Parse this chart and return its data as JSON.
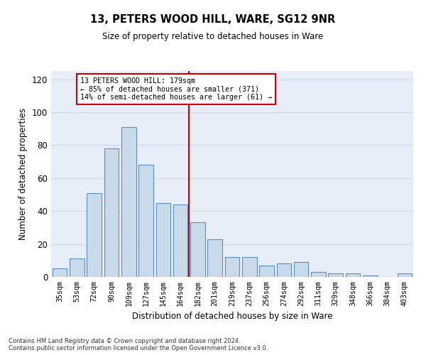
{
  "title": "13, PETERS WOOD HILL, WARE, SG12 9NR",
  "subtitle": "Size of property relative to detached houses in Ware",
  "xlabel": "Distribution of detached houses by size in Ware",
  "ylabel": "Number of detached properties",
  "bar_labels": [
    "35sqm",
    "53sqm",
    "72sqm",
    "90sqm",
    "109sqm",
    "127sqm",
    "145sqm",
    "164sqm",
    "182sqm",
    "201sqm",
    "219sqm",
    "237sqm",
    "256sqm",
    "274sqm",
    "292sqm",
    "311sqm",
    "329sqm",
    "348sqm",
    "366sqm",
    "384sqm",
    "403sqm"
  ],
  "bar_values": [
    5,
    11,
    51,
    78,
    91,
    68,
    45,
    44,
    33,
    23,
    12,
    12,
    7,
    8,
    9,
    3,
    2,
    2,
    1,
    0,
    2
  ],
  "bar_color": "#c9daea",
  "bar_edge_color": "#5a8fc0",
  "vline_index": 8,
  "vline_color": "#cc0000",
  "annotation_text": "13 PETERS WOOD HILL: 179sqm\n← 85% of detached houses are smaller (371)\n14% of semi-detached houses are larger (61) →",
  "annotation_box_color": "#cc0000",
  "annotation_bg": "white",
  "ylim": [
    0,
    125
  ],
  "yticks": [
    0,
    20,
    40,
    60,
    80,
    100,
    120
  ],
  "grid_color": "#d0d8e8",
  "background_color": "#e8eef7",
  "footer": "Contains HM Land Registry data © Crown copyright and database right 2024.\nContains public sector information licensed under the Open Government Licence v3.0."
}
